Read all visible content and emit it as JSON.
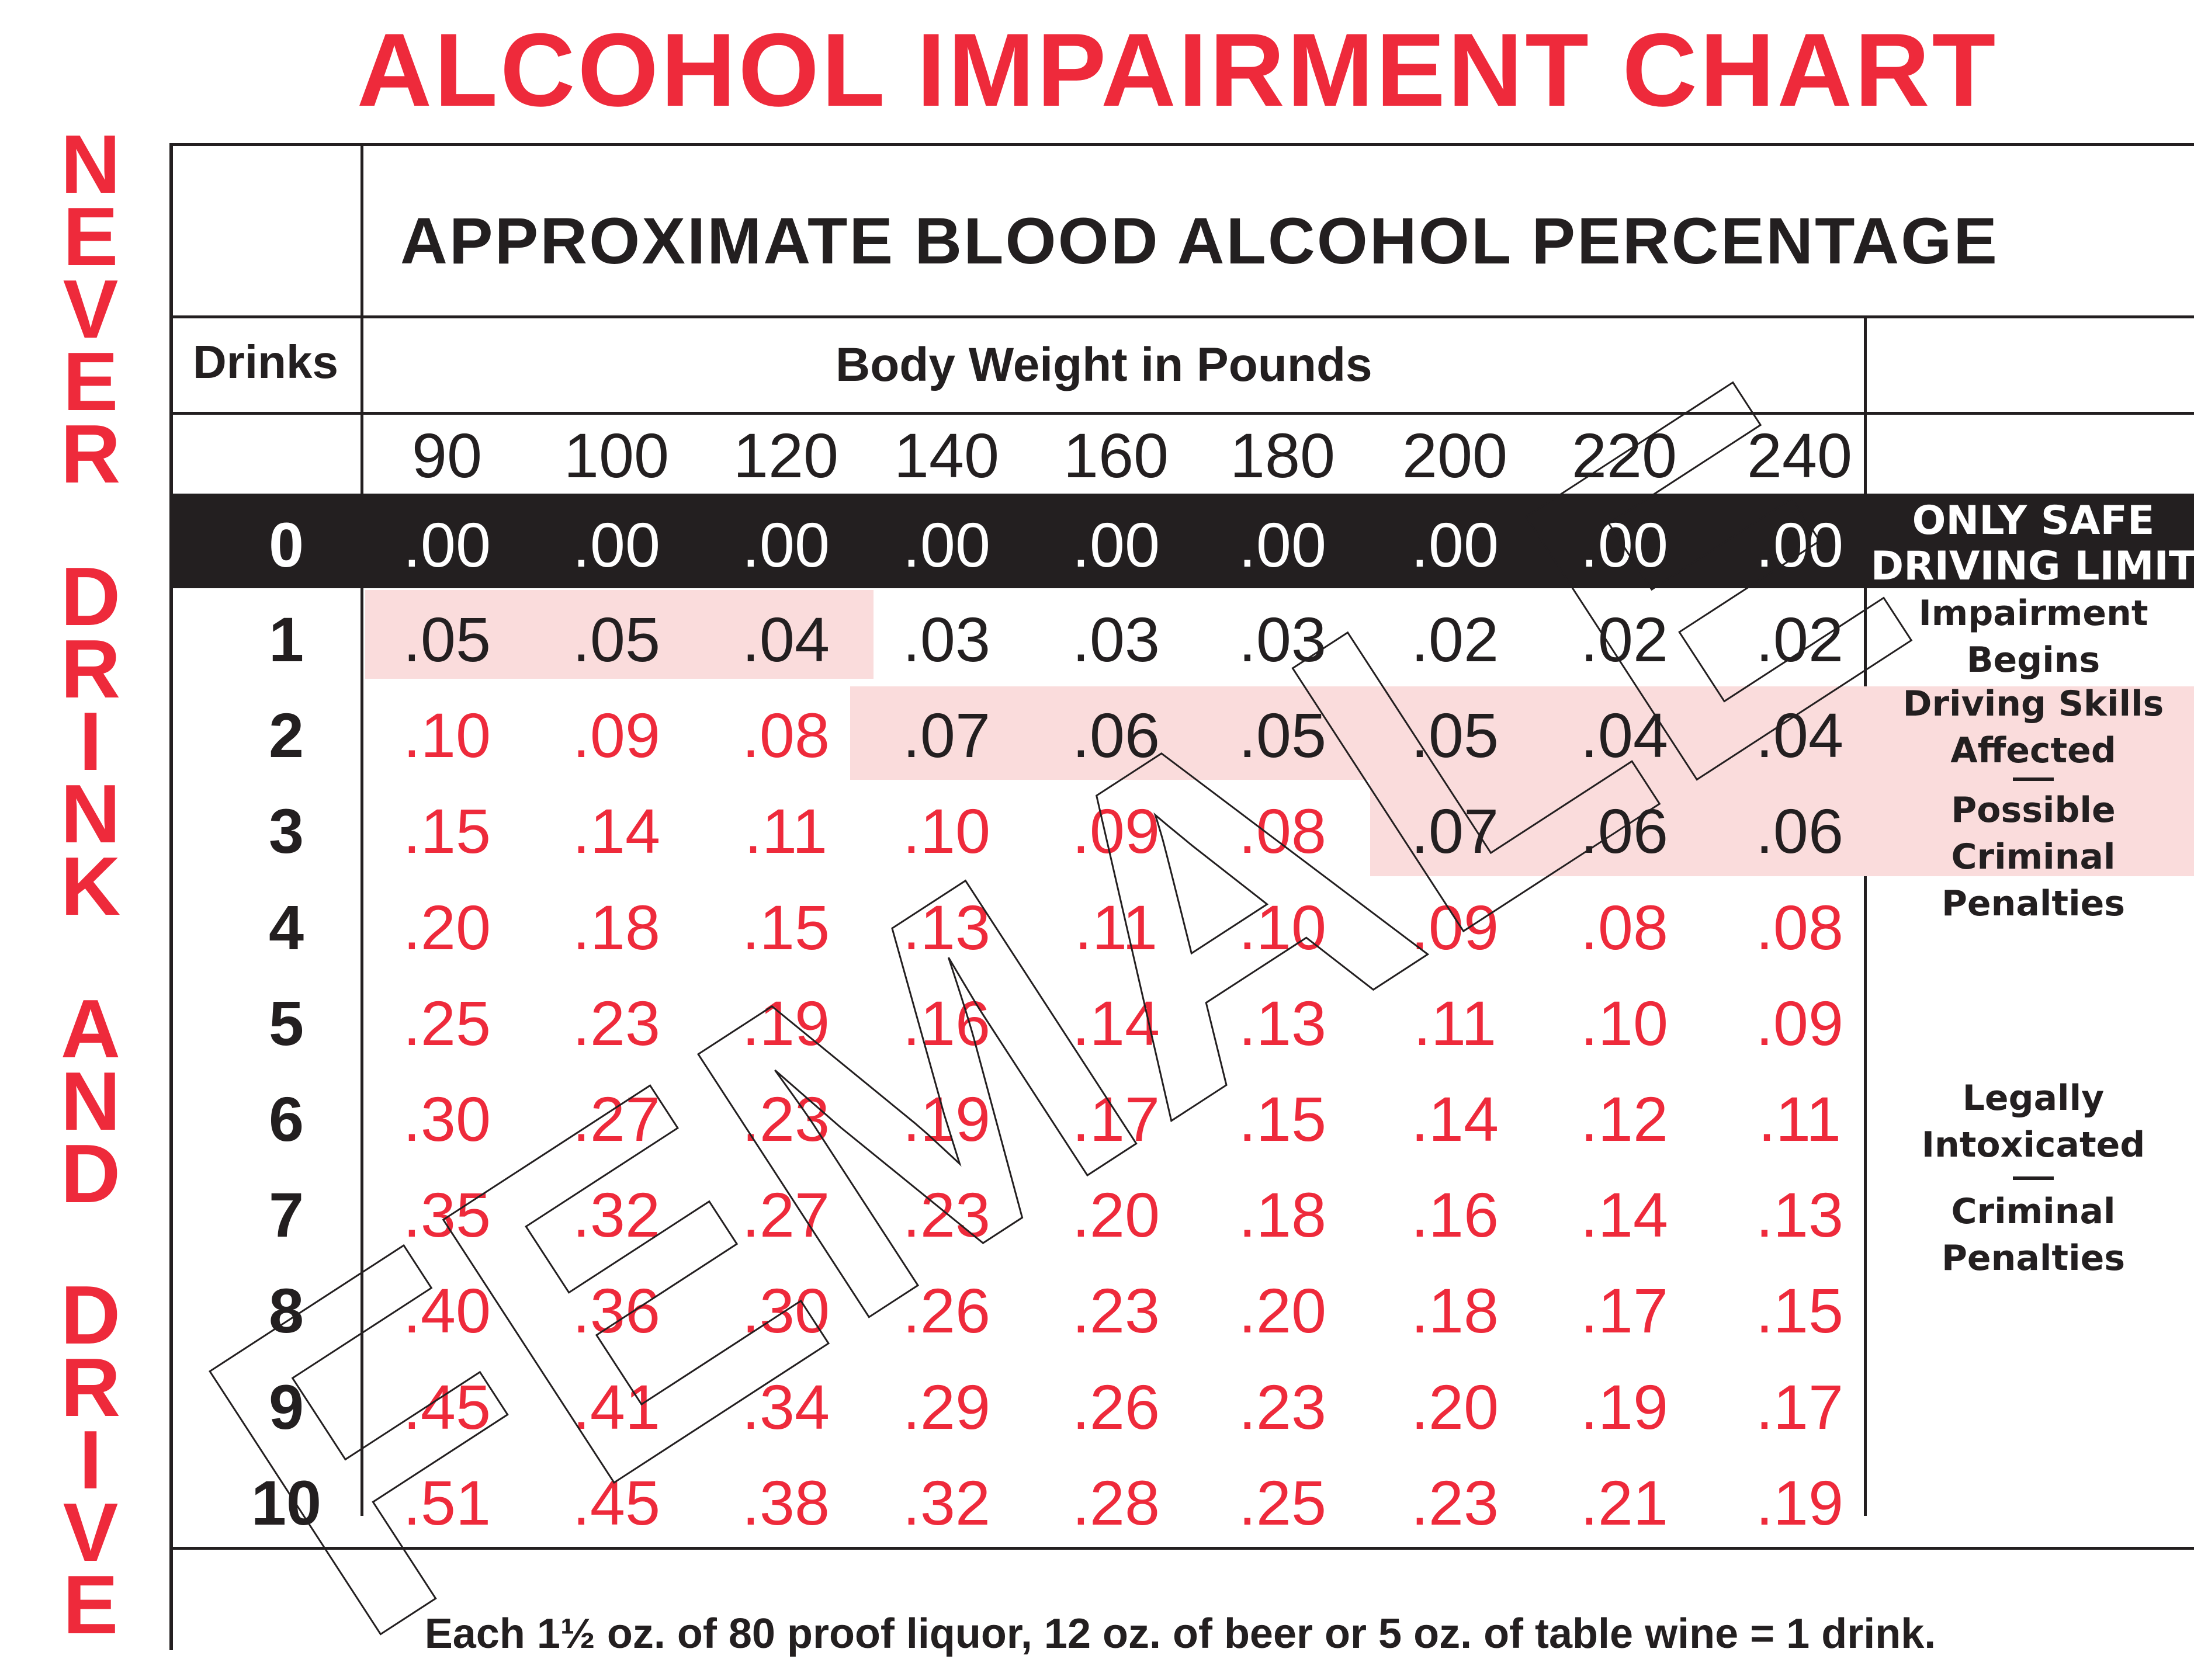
{
  "title": "ALCOHOL IMPAIRMENT CHART",
  "side_text": [
    "NEVER",
    "DRINK",
    "AND",
    "DRIVE"
  ],
  "watermark": "FEMALE",
  "footnote": "Each 1½ oz. of 80 proof liquor, 12 oz. of beer or 5 oz. of table wine = 1 drink.",
  "colors": {
    "red": "#ee2a3b",
    "black": "#231f20",
    "pink_band": "#fadcdc"
  },
  "chart_data": {
    "type": "table",
    "title": "APPROXIMATE BLOOD ALCOHOL PERCENTAGE",
    "row_header": "Drinks",
    "column_group_header": "Body Weight in Pounds",
    "columns": [
      "90",
      "100",
      "120",
      "140",
      "160",
      "180",
      "200",
      "220",
      "240"
    ],
    "rows": [
      {
        "drinks": "0",
        "values": [
          ".00",
          ".00",
          ".00",
          ".00",
          ".00",
          ".00",
          ".00",
          ".00",
          ".00"
        ]
      },
      {
        "drinks": "1",
        "values": [
          ".05",
          ".05",
          ".04",
          ".03",
          ".03",
          ".03",
          ".02",
          ".02",
          ".02"
        ]
      },
      {
        "drinks": "2",
        "values": [
          ".10",
          ".09",
          ".08",
          ".07",
          ".06",
          ".05",
          ".05",
          ".04",
          ".04"
        ]
      },
      {
        "drinks": "3",
        "values": [
          ".15",
          ".14",
          ".11",
          ".10",
          ".09",
          ".08",
          ".07",
          ".06",
          ".06"
        ]
      },
      {
        "drinks": "4",
        "values": [
          ".20",
          ".18",
          ".15",
          ".13",
          ".11",
          ".10",
          ".09",
          ".08",
          ".08"
        ]
      },
      {
        "drinks": "5",
        "values": [
          ".25",
          ".23",
          ".19",
          ".16",
          ".14",
          ".13",
          ".11",
          ".10",
          ".09"
        ]
      },
      {
        "drinks": "6",
        "values": [
          ".30",
          ".27",
          ".23",
          ".19",
          ".17",
          ".15",
          ".14",
          ".12",
          ".11"
        ]
      },
      {
        "drinks": "7",
        "values": [
          ".35",
          ".32",
          ".27",
          ".23",
          ".20",
          ".18",
          ".16",
          ".14",
          ".13"
        ]
      },
      {
        "drinks": "8",
        "values": [
          ".40",
          ".36",
          ".30",
          ".26",
          ".23",
          ".20",
          ".18",
          ".17",
          ".15"
        ]
      },
      {
        "drinks": "9",
        "values": [
          ".45",
          ".41",
          ".34",
          ".29",
          ".26",
          ".23",
          ".20",
          ".19",
          ".17"
        ]
      },
      {
        "drinks": "10",
        "values": [
          ".51",
          ".45",
          ".38",
          ".32",
          ".28",
          ".25",
          ".23",
          ".21",
          ".19"
        ]
      }
    ],
    "effects": [
      {
        "rows": "0",
        "lines": [
          "ONLY SAFE",
          "DRIVING LIMIT"
        ]
      },
      {
        "rows": "1",
        "lines": [
          "Impairment",
          "Begins"
        ]
      },
      {
        "rows": "2-3",
        "lines": [
          "Driving Skills",
          "Affected"
        ],
        "lines2": [
          "Possible",
          "Criminal Penalties"
        ]
      },
      {
        "rows": "4-10",
        "lines": [
          "Legally",
          "Intoxicated"
        ],
        "lines2": [
          "Criminal",
          "Penalties"
        ]
      }
    ]
  }
}
